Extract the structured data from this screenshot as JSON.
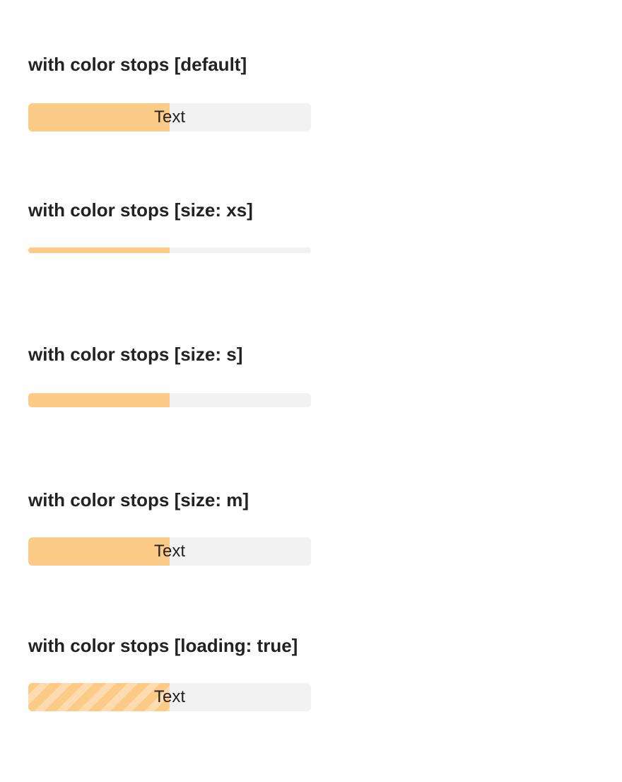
{
  "sections": [
    {
      "title": "with color stops [default]",
      "progress": {
        "value": 50,
        "text": "Text",
        "loading": false,
        "size": "default"
      }
    },
    {
      "title": "with color stops [size: xs]",
      "progress": {
        "value": 50,
        "text": "",
        "loading": false,
        "size": "xs"
      }
    },
    {
      "title": "with color stops [size: s]",
      "progress": {
        "value": 50,
        "text": "",
        "loading": false,
        "size": "s"
      }
    },
    {
      "title": "with color stops [size: m]",
      "progress": {
        "value": 50,
        "text": "Text",
        "loading": false,
        "size": "m"
      }
    },
    {
      "title": "with color stops [loading: true]",
      "progress": {
        "value": 50,
        "text": "Text",
        "loading": true,
        "size": "default"
      }
    }
  ],
  "colors": {
    "fill": "#fdcb88",
    "fill_stripe": "#fedcb0",
    "track": "#f2f2f2",
    "text": "#222222"
  }
}
